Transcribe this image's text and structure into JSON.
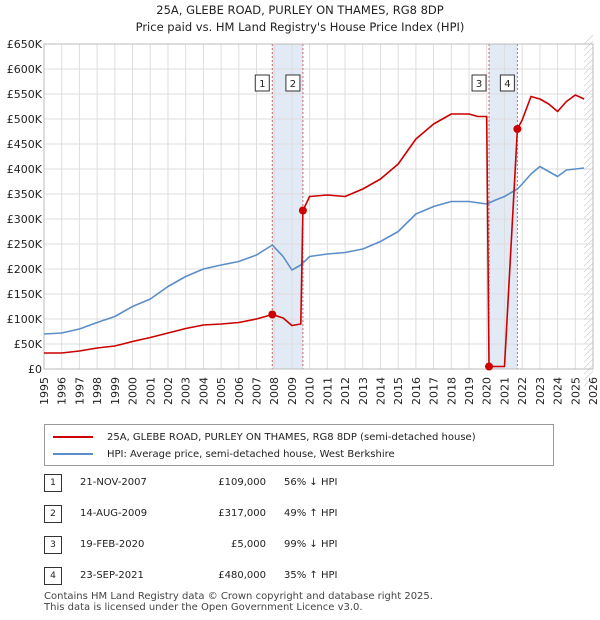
{
  "title_line1": "25A, GLEBE ROAD, PURLEY ON THAMES, RG8 8DP",
  "title_line2": "Price paid vs. HM Land Registry's House Price Index (HPI)",
  "chart_data": {
    "type": "line",
    "ylim": [
      0,
      650000
    ],
    "xlim": [
      1995,
      2026
    ],
    "y_ticks": [
      0,
      50000,
      100000,
      150000,
      200000,
      250000,
      300000,
      350000,
      400000,
      450000,
      500000,
      550000,
      600000,
      650000
    ],
    "y_tick_labels": [
      "£0",
      "£50K",
      "£100K",
      "£150K",
      "£200K",
      "£250K",
      "£300K",
      "£350K",
      "£400K",
      "£450K",
      "£500K",
      "£550K",
      "£600K",
      "£650K"
    ],
    "x_ticks": [
      1995,
      1996,
      1997,
      1998,
      1999,
      2000,
      2001,
      2002,
      2003,
      2004,
      2005,
      2006,
      2007,
      2008,
      2009,
      2010,
      2011,
      2012,
      2013,
      2014,
      2015,
      2016,
      2017,
      2018,
      2019,
      2020,
      2021,
      2022,
      2023,
      2024,
      2025,
      2026
    ],
    "x_tick_labels": [
      "1995",
      "1996",
      "1997",
      "1998",
      "1999",
      "2000",
      "2001",
      "2002",
      "2003",
      "2004",
      "2005",
      "2006",
      "2007",
      "2008",
      "2009",
      "2010",
      "2011",
      "2012",
      "2013",
      "2014",
      "2015",
      "2016",
      "2017",
      "2018",
      "2019",
      "2020",
      "2021",
      "2022",
      "2023",
      "2024",
      "2025",
      "2026"
    ],
    "grid": true,
    "shaded_periods": [
      [
        2007.89,
        2009.62
      ],
      [
        2020.13,
        2021.73
      ]
    ],
    "series": [
      {
        "name": "25A, GLEBE ROAD, PURLEY ON THAMES, RG8 8DP (semi-detached house)",
        "color": "#cc0000",
        "x": [
          1995.0,
          1996.0,
          1997.0,
          1998.0,
          1999.0,
          2000.0,
          2001.0,
          2002.0,
          2003.0,
          2004.0,
          2005.0,
          2006.0,
          2007.0,
          2007.89,
          2008.5,
          2009.0,
          2009.5,
          2009.62,
          2010.0,
          2011.0,
          2012.0,
          2013.0,
          2014.0,
          2015.0,
          2016.0,
          2017.0,
          2018.0,
          2019.0,
          2019.5,
          2020.0,
          2020.13,
          2020.5,
          2021.0,
          2021.73,
          2022.0,
          2022.5,
          2023.0,
          2023.5,
          2024.0,
          2024.5,
          2025.0,
          2025.5
        ],
        "y": [
          32000,
          32000,
          36000,
          42000,
          46000,
          55000,
          63000,
          72000,
          81000,
          88000,
          90000,
          93000,
          100000,
          109000,
          102000,
          87000,
          90000,
          317000,
          345000,
          348000,
          345000,
          360000,
          380000,
          410000,
          460000,
          490000,
          510000,
          510000,
          505000,
          505000,
          5000,
          5000,
          5000,
          480000,
          498000,
          545000,
          540000,
          530000,
          515000,
          535000,
          548000,
          540000
        ]
      },
      {
        "name": "HPI: Average price, semi-detached house, West Berkshire",
        "color": "#5b8ec9",
        "x": [
          1995.0,
          1996.0,
          1997.0,
          1998.0,
          1999.0,
          2000.0,
          2001.0,
          2002.0,
          2003.0,
          2004.0,
          2005.0,
          2006.0,
          2007.0,
          2007.89,
          2008.5,
          2009.0,
          2009.5,
          2010.0,
          2011.0,
          2012.0,
          2013.0,
          2014.0,
          2015.0,
          2016.0,
          2017.0,
          2018.0,
          2019.0,
          2020.0,
          2020.5,
          2021.0,
          2021.73,
          2022.0,
          2022.5,
          2023.0,
          2023.5,
          2024.0,
          2024.5,
          2025.0,
          2025.5
        ],
        "y": [
          70000,
          72000,
          80000,
          93000,
          105000,
          125000,
          140000,
          165000,
          185000,
          200000,
          208000,
          215000,
          228000,
          248000,
          225000,
          198000,
          208000,
          225000,
          230000,
          233000,
          240000,
          255000,
          275000,
          310000,
          325000,
          335000,
          335000,
          330000,
          338000,
          345000,
          360000,
          370000,
          390000,
          405000,
          395000,
          385000,
          398000,
          400000,
          402000
        ]
      }
    ],
    "markers": [
      {
        "label": "1",
        "x": 2007.89,
        "y": 109000
      },
      {
        "label": "2",
        "x": 2009.62,
        "y": 317000
      },
      {
        "label": "3",
        "x": 2020.13,
        "y": 5000
      },
      {
        "label": "4",
        "x": 2021.73,
        "y": 480000
      }
    ]
  },
  "legend": {
    "property": "25A, GLEBE ROAD, PURLEY ON THAMES, RG8 8DP (semi-detached house)",
    "hpi": "HPI: Average price, semi-detached house, West Berkshire"
  },
  "transactions": [
    {
      "num": "1",
      "date": "21-NOV-2007",
      "price": "£109,000",
      "hpi": "56% ↓ HPI"
    },
    {
      "num": "2",
      "date": "14-AUG-2009",
      "price": "£317,000",
      "hpi": "49% ↑ HPI"
    },
    {
      "num": "3",
      "date": "19-FEB-2020",
      "price": "£5,000",
      "hpi": "99% ↓ HPI"
    },
    {
      "num": "4",
      "date": "23-SEP-2021",
      "price": "£480,000",
      "hpi": "35% ↑ HPI"
    }
  ],
  "footer": {
    "line1": "Contains HM Land Registry data © Crown copyright and database right 2025.",
    "line2": "This data is licensed under the Open Government Licence v3.0."
  },
  "colors": {
    "property_line": "#cc0000",
    "hpi_line": "#5b8ec9",
    "shade": "#dde6f5",
    "grid": "#dddddd"
  }
}
